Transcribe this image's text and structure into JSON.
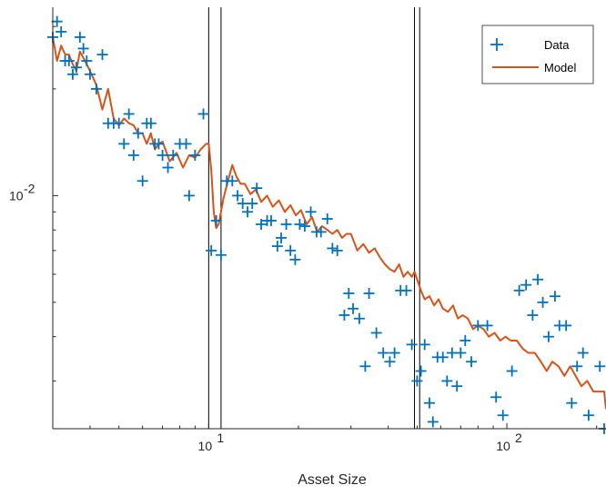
{
  "chart_data": {
    "type": "scatter",
    "xlabel": "Asset Size",
    "ylabel": "",
    "x_scale": "log",
    "y_scale": "log",
    "xlim": [
      3,
      215
    ],
    "ylim": [
      0.0022,
      0.034
    ],
    "x_ticks": [
      {
        "value": 10,
        "label": "10",
        "exp": "1"
      },
      {
        "value": 100,
        "label": "10",
        "exp": "2"
      }
    ],
    "y_ticks": [
      {
        "value": 0.01,
        "label": "10",
        "exp": "-2"
      }
    ],
    "vertical_lines": [
      10,
      11,
      49,
      51
    ],
    "legend": {
      "position": "top-right",
      "entries": [
        "Data",
        "Model"
      ]
    },
    "grid": false,
    "colors": {
      "data": "#0072BD",
      "model": "#D95319"
    },
    "series": [
      {
        "name": "Data",
        "kind": "scatter",
        "points": [
          [
            3.0,
            0.028
          ],
          [
            3.1,
            0.031
          ],
          [
            3.2,
            0.029
          ],
          [
            3.3,
            0.024
          ],
          [
            3.4,
            0.024
          ],
          [
            3.5,
            0.022
          ],
          [
            3.6,
            0.023
          ],
          [
            3.7,
            0.028
          ],
          [
            3.8,
            0.026
          ],
          [
            3.9,
            0.024
          ],
          [
            4.0,
            0.022
          ],
          [
            4.2,
            0.02
          ],
          [
            4.4,
            0.025
          ],
          [
            4.6,
            0.016
          ],
          [
            4.8,
            0.016
          ],
          [
            5.0,
            0.016
          ],
          [
            5.2,
            0.014
          ],
          [
            5.4,
            0.017
          ],
          [
            5.6,
            0.013
          ],
          [
            5.8,
            0.015
          ],
          [
            6.0,
            0.011
          ],
          [
            6.2,
            0.016
          ],
          [
            6.4,
            0.016
          ],
          [
            6.6,
            0.014
          ],
          [
            6.8,
            0.014
          ],
          [
            7.0,
            0.013
          ],
          [
            7.3,
            0.012
          ],
          [
            7.6,
            0.013
          ],
          [
            8.0,
            0.014
          ],
          [
            8.4,
            0.014
          ],
          [
            8.6,
            0.01
          ],
          [
            9.0,
            0.013
          ],
          [
            9.6,
            0.017
          ],
          [
            10.2,
            0.007
          ],
          [
            10.6,
            0.0085
          ],
          [
            11.0,
            0.0068
          ],
          [
            11.5,
            0.011
          ],
          [
            12.0,
            0.011
          ],
          [
            12.5,
            0.01
          ],
          [
            13.0,
            0.0095
          ],
          [
            13.5,
            0.009
          ],
          [
            14.0,
            0.0095
          ],
          [
            14.5,
            0.0105
          ],
          [
            15.0,
            0.0083
          ],
          [
            15.7,
            0.0085
          ],
          [
            16.2,
            0.0085
          ],
          [
            17.0,
            0.0072
          ],
          [
            17.5,
            0.0076
          ],
          [
            18.2,
            0.0083
          ],
          [
            18.8,
            0.007
          ],
          [
            19.5,
            0.0066
          ],
          [
            20.2,
            0.0083
          ],
          [
            21.0,
            0.0082
          ],
          [
            22.0,
            0.009
          ],
          [
            23.0,
            0.0079
          ],
          [
            23.8,
            0.0079
          ],
          [
            25.0,
            0.0086
          ],
          [
            26.0,
            0.0071
          ],
          [
            27.0,
            0.007
          ],
          [
            28.5,
            0.0046
          ],
          [
            29.5,
            0.0053
          ],
          [
            30.5,
            0.0048
          ],
          [
            32.0,
            0.0045
          ],
          [
            33.5,
            0.0033
          ],
          [
            34.5,
            0.0053
          ],
          [
            36.5,
            0.0041
          ],
          [
            38.5,
            0.0036
          ],
          [
            40.5,
            0.0034
          ],
          [
            42.0,
            0.0036
          ],
          [
            44.0,
            0.0054
          ],
          [
            46.0,
            0.0054
          ],
          [
            48.0,
            0.0038
          ],
          [
            50.0,
            0.003
          ],
          [
            51.5,
            0.0032
          ],
          [
            53.0,
            0.0038
          ],
          [
            55.0,
            0.0026
          ],
          [
            56.5,
            0.0023
          ],
          [
            58.5,
            0.0035
          ],
          [
            61.0,
            0.0035
          ],
          [
            63.0,
            0.003
          ],
          [
            65.5,
            0.0036
          ],
          [
            68.0,
            0.0029
          ],
          [
            70.0,
            0.0036
          ],
          [
            72.5,
            0.0039
          ],
          [
            76.0,
            0.0034
          ],
          [
            80.0,
            0.0043
          ],
          [
            86.0,
            0.0043
          ],
          [
            92.0,
            0.0027
          ],
          [
            97.0,
            0.0024
          ],
          [
            100.0,
            0.0021
          ],
          [
            104.0,
            0.0032
          ],
          [
            110.0,
            0.0054
          ],
          [
            116.0,
            0.0056
          ],
          [
            122.0,
            0.0046
          ],
          [
            127.0,
            0.0058
          ],
          [
            132.0,
            0.005
          ],
          [
            138.0,
            0.004
          ],
          [
            145.0,
            0.0052
          ],
          [
            150.0,
            0.0043
          ],
          [
            158.0,
            0.0043
          ],
          [
            165.0,
            0.0026
          ],
          [
            172.0,
            0.0033
          ],
          [
            180.0,
            0.0036
          ],
          [
            188.0,
            0.0024
          ],
          [
            196.0,
            0.0021
          ],
          [
            205.0,
            0.0033
          ],
          [
            212.0,
            0.0022
          ]
        ]
      },
      {
        "name": "Model",
        "kind": "line",
        "points": [
          [
            3.0,
            0.028
          ],
          [
            3.1,
            0.024
          ],
          [
            3.2,
            0.0265
          ],
          [
            3.3,
            0.025
          ],
          [
            3.4,
            0.025
          ],
          [
            3.5,
            0.0235
          ],
          [
            3.6,
            0.0225
          ],
          [
            3.7,
            0.0255
          ],
          [
            3.8,
            0.0245
          ],
          [
            4.0,
            0.0225
          ],
          [
            4.2,
            0.0205
          ],
          [
            4.4,
            0.0175
          ],
          [
            4.6,
            0.02
          ],
          [
            4.8,
            0.0165
          ],
          [
            5.0,
            0.0158
          ],
          [
            5.2,
            0.0165
          ],
          [
            5.4,
            0.016
          ],
          [
            5.6,
            0.0158
          ],
          [
            5.8,
            0.015
          ],
          [
            6.0,
            0.015
          ],
          [
            6.2,
            0.014
          ],
          [
            6.4,
            0.015
          ],
          [
            6.6,
            0.0135
          ],
          [
            6.8,
            0.014
          ],
          [
            7.0,
            0.0142
          ],
          [
            7.4,
            0.0125
          ],
          [
            7.8,
            0.0132
          ],
          [
            8.2,
            0.012
          ],
          [
            8.6,
            0.013
          ],
          [
            9.0,
            0.0128
          ],
          [
            9.4,
            0.0135
          ],
          [
            9.8,
            0.014
          ],
          [
            10.0,
            0.014
          ],
          [
            10.2,
            0.0118
          ],
          [
            10.4,
            0.009
          ],
          [
            10.6,
            0.0081
          ],
          [
            10.8,
            0.0083
          ],
          [
            11.2,
            0.0098
          ],
          [
            11.6,
            0.011
          ],
          [
            12.0,
            0.0122
          ],
          [
            12.4,
            0.0113
          ],
          [
            12.8,
            0.0108
          ],
          [
            13.2,
            0.0108
          ],
          [
            13.8,
            0.0101
          ],
          [
            14.4,
            0.0104
          ],
          [
            15.0,
            0.0096
          ],
          [
            15.7,
            0.01
          ],
          [
            16.4,
            0.0093
          ],
          [
            17.2,
            0.0097
          ],
          [
            18.0,
            0.009
          ],
          [
            18.8,
            0.0094
          ],
          [
            19.6,
            0.0088
          ],
          [
            20.4,
            0.0091
          ],
          [
            21.3,
            0.0083
          ],
          [
            22.2,
            0.0087
          ],
          [
            23.1,
            0.0079
          ],
          [
            24.0,
            0.0082
          ],
          [
            25.0,
            0.008
          ],
          [
            26.0,
            0.0078
          ],
          [
            27.0,
            0.008
          ],
          [
            28.0,
            0.0076
          ],
          [
            29.0,
            0.0078
          ],
          [
            30.0,
            0.0078
          ],
          [
            31.5,
            0.007
          ],
          [
            33.0,
            0.0073
          ],
          [
            34.5,
            0.0069
          ],
          [
            36.0,
            0.0071
          ],
          [
            37.5,
            0.0067
          ],
          [
            39.0,
            0.0064
          ],
          [
            40.5,
            0.0062
          ],
          [
            42.0,
            0.0061
          ],
          [
            43.5,
            0.0064
          ],
          [
            45.0,
            0.0059
          ],
          [
            46.5,
            0.0061
          ],
          [
            48.0,
            0.0059
          ],
          [
            49.0,
            0.0061
          ],
          [
            50.0,
            0.0058
          ],
          [
            51.5,
            0.0054
          ],
          [
            53.0,
            0.0051
          ],
          [
            55.0,
            0.0052
          ],
          [
            57.0,
            0.0049
          ],
          [
            59.0,
            0.0051
          ],
          [
            61.0,
            0.0048
          ],
          [
            63.5,
            0.0047
          ],
          [
            66.0,
            0.0049
          ],
          [
            68.5,
            0.0045
          ],
          [
            71.0,
            0.0046
          ],
          [
            74.0,
            0.0045
          ],
          [
            77.0,
            0.0042
          ],
          [
            80.0,
            0.0043
          ],
          [
            83.5,
            0.0042
          ],
          [
            87.0,
            0.004
          ],
          [
            91.0,
            0.0041
          ],
          [
            95.0,
            0.0039
          ],
          [
            99.0,
            0.004
          ],
          [
            103.0,
            0.0039
          ],
          [
            108.0,
            0.0039
          ],
          [
            113.0,
            0.0037
          ],
          [
            118.0,
            0.0036
          ],
          [
            124.0,
            0.0036
          ],
          [
            130.0,
            0.0034
          ],
          [
            136.0,
            0.0032
          ],
          [
            142.0,
            0.0034
          ],
          [
            149.0,
            0.0033
          ],
          [
            156.0,
            0.0031
          ],
          [
            163.0,
            0.0033
          ],
          [
            170.0,
            0.0031
          ],
          [
            178.0,
            0.0029
          ],
          [
            186.0,
            0.003
          ],
          [
            195.0,
            0.0028
          ],
          [
            204.0,
            0.0028
          ],
          [
            212.0,
            0.0028
          ],
          [
            215.0,
            0.0025
          ]
        ]
      }
    ]
  }
}
